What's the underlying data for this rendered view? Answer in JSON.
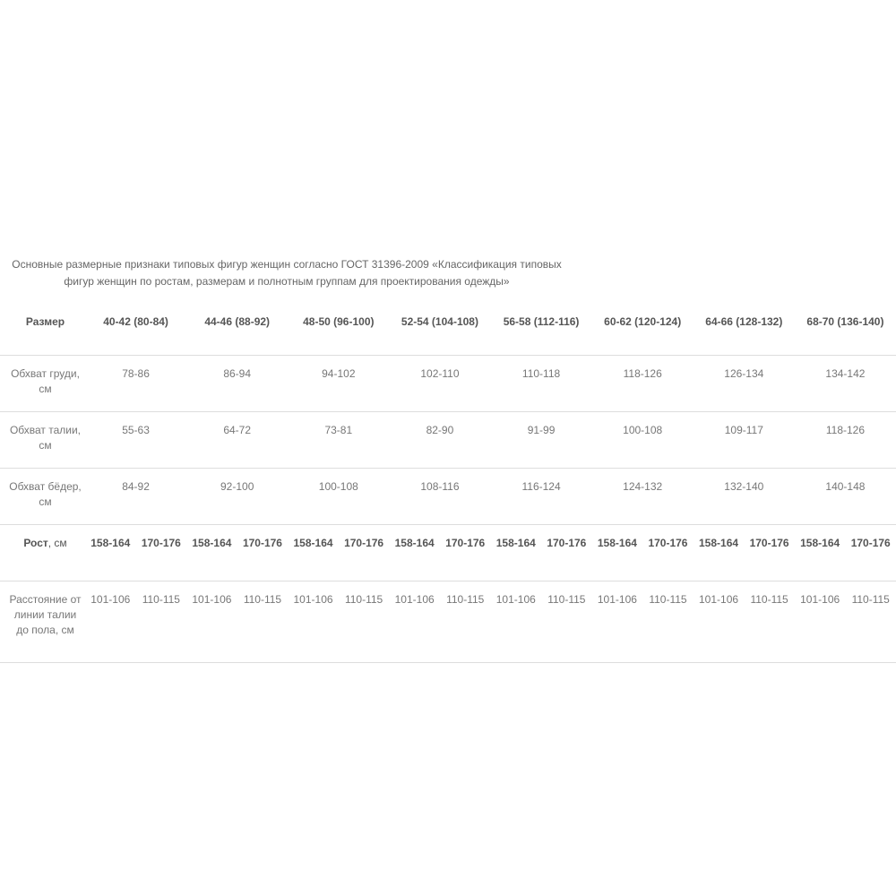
{
  "caption": "Основные размерные признаки типовых фигур женщин согласно ГОСТ 31396-2009 «Классификация типовых фигур женщин по ростам, размерам и полнотным группам для проектирования одежды»",
  "table": {
    "size_label": "Размер",
    "sizes": [
      "40-42 (80-84)",
      "44-46 (88-92)",
      "48-50 (96-100)",
      "52-54 (104-108)",
      "56-58 (112-116)",
      "60-62 (120-124)",
      "64-66 (128-132)",
      "68-70 (136-140)"
    ],
    "rows": [
      {
        "label": "Обхват груди, см",
        "values": [
          "78-86",
          "86-94",
          "94-102",
          "102-110",
          "110-118",
          "118-126",
          "126-134",
          "134-142"
        ]
      },
      {
        "label": "Обхват талии, см",
        "values": [
          "55-63",
          "64-72",
          "73-81",
          "82-90",
          "91-99",
          "100-108",
          "109-117",
          "118-126"
        ]
      },
      {
        "label": "Обхват бёдер, см",
        "values": [
          "84-92",
          "92-100",
          "100-108",
          "108-116",
          "116-124",
          "124-132",
          "132-140",
          "140-148"
        ]
      }
    ],
    "height_label": "Рост",
    "height_unit": ", см",
    "heights": [
      "158-164",
      "170-176"
    ],
    "distance": {
      "label": "Расстояние от линии талии до пола, см",
      "values": [
        "101-106",
        "110-115"
      ]
    }
  }
}
